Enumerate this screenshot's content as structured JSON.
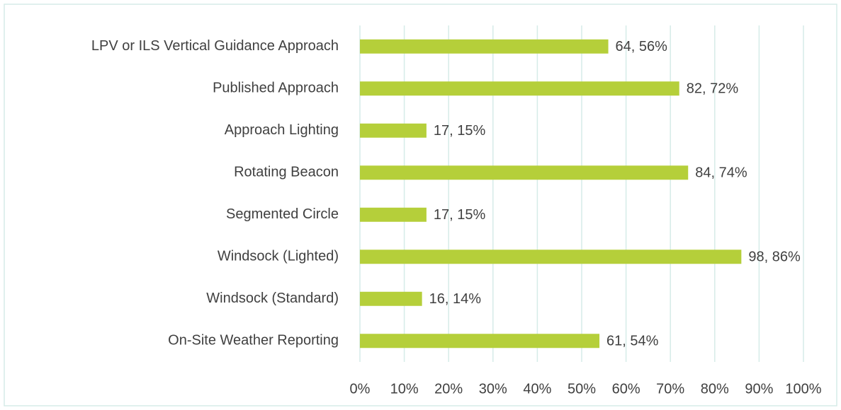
{
  "chart_data": {
    "type": "bar",
    "orientation": "horizontal",
    "categories": [
      "LPV or ILS Vertical Guidance Approach",
      "Published Approach",
      "Approach Lighting",
      "Rotating Beacon",
      "Segmented Circle",
      "Windsock (Lighted)",
      "Windsock (Standard)",
      "On-Site Weather Reporting"
    ],
    "values": [
      56,
      72,
      15,
      74,
      15,
      86,
      14,
      54
    ],
    "value_labels": [
      "64, 56%",
      "82, 72%",
      "17, 15%",
      "84, 74%",
      "17, 15%",
      "98, 86%",
      "16, 14%",
      "61, 54%"
    ],
    "color": "#b5cf3a",
    "xlim": [
      0,
      100
    ],
    "xticks": [
      {
        "value": 0,
        "label": "0%"
      },
      {
        "value": 10,
        "label": "10%"
      },
      {
        "value": 20,
        "label": "20%"
      },
      {
        "value": 30,
        "label": "30%"
      },
      {
        "value": 40,
        "label": "40%"
      },
      {
        "value": 50,
        "label": "50%"
      },
      {
        "value": 60,
        "label": "60%"
      },
      {
        "value": 70,
        "label": "70%"
      },
      {
        "value": 80,
        "label": "80%"
      },
      {
        "value": 90,
        "label": "90%"
      },
      {
        "value": 100,
        "label": "100%"
      }
    ],
    "grid": true
  }
}
